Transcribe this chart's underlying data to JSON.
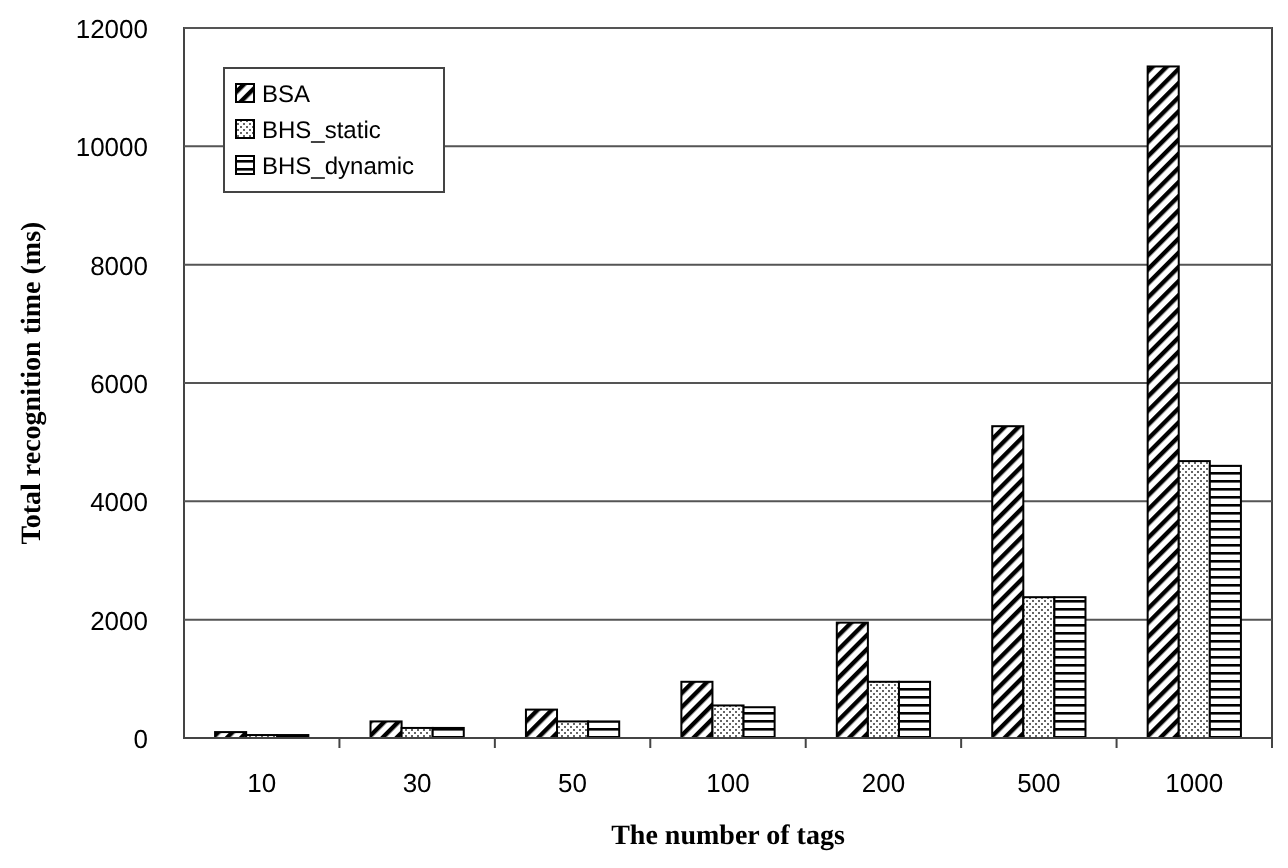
{
  "chart_data": {
    "type": "bar",
    "xlabel": "The number of tags",
    "ylabel": "Total recognition time (ms)",
    "categories": [
      "10",
      "30",
      "50",
      "100",
      "200",
      "500",
      "1000"
    ],
    "series": [
      {
        "name": "BSA",
        "color": "#000000",
        "values": [
          100,
          280,
          480,
          950,
          1950,
          5270,
          11350
        ]
      },
      {
        "name": "BHS_static",
        "color": "#000000",
        "values": [
          50,
          170,
          280,
          550,
          950,
          2380,
          4680
        ]
      },
      {
        "name": "BHS_dynamic",
        "color": "#000000",
        "values": [
          50,
          170,
          280,
          520,
          950,
          2380,
          4600
        ]
      }
    ],
    "ylim": [
      0,
      12000
    ],
    "yticks": [
      0,
      2000,
      4000,
      6000,
      8000,
      10000,
      12000
    ],
    "grid": "y",
    "legend": "top left"
  }
}
